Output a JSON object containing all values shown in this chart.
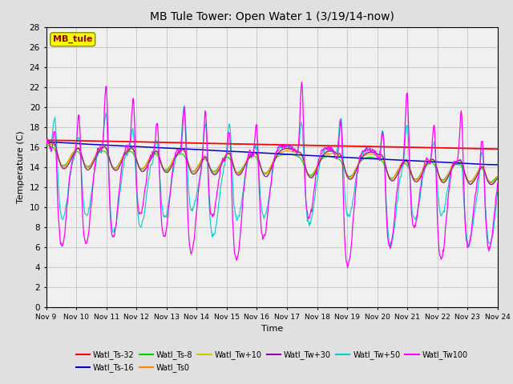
{
  "title": "MB Tule Tower: Open Water 1 (3/19/14-now)",
  "xlabel": "Time",
  "ylabel": "Temperature (C)",
  "ylim": [
    0,
    28
  ],
  "yticks": [
    0,
    2,
    4,
    6,
    8,
    10,
    12,
    14,
    16,
    18,
    20,
    22,
    24,
    26,
    28
  ],
  "xtick_labels": [
    "Nov 9",
    "Nov 10",
    "Nov 11",
    "Nov 12",
    "Nov 13",
    "Nov 14",
    "Nov 15",
    "Nov 16",
    "Nov 17",
    "Nov 18",
    "Nov 19",
    "Nov 20",
    "Nov 21",
    "Nov 22",
    "Nov 23",
    "Nov 24"
  ],
  "legend_label": "MB_tule",
  "series_colors": {
    "Watl_Ts-32": "#ff0000",
    "Watl_Ts-16": "#0000cc",
    "Watl_Ts-8": "#00cc00",
    "Watl_Ts0": "#ff8800",
    "Watl_Tw+10": "#cccc00",
    "Watl_Tw+30": "#8800aa",
    "Watl_Tw+50": "#00cccc",
    "Watl_Tw100": "#ff00ff"
  },
  "bg_color": "#e0e0e0",
  "plot_bg": "#f0f0f0"
}
